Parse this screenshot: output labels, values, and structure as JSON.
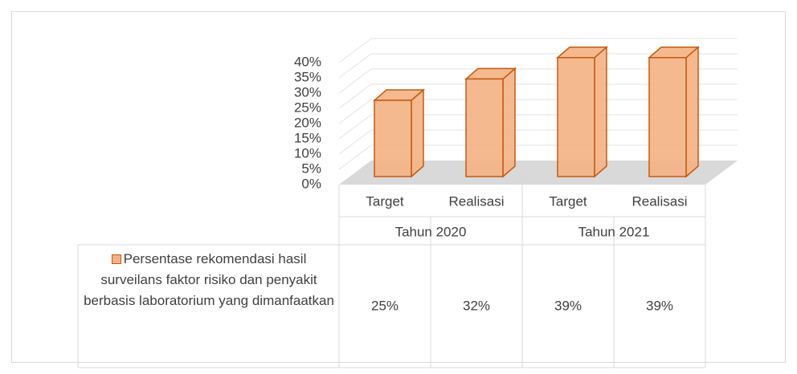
{
  "chart_data": {
    "type": "bar3d",
    "categories": [
      "Target",
      "Realisasi",
      "Target",
      "Realisasi"
    ],
    "groups": [
      "Tahun 2020",
      "Tahun 2021"
    ],
    "series": [
      {
        "name": "Persentase rekomendasi hasil surveilans faktor risiko dan penyakit berbasis laboratorium yang dimanfaatkan",
        "color": "#f4b183",
        "edge": "#c55a11",
        "values": [
          25,
          32,
          39,
          39
        ],
        "value_labels": [
          "25%",
          "32%",
          "39%",
          "39%"
        ]
      }
    ],
    "ylim": [
      0,
      40
    ],
    "yticks": [
      {
        "value": 0,
        "label": "0%"
      },
      {
        "value": 5,
        "label": "5%"
      },
      {
        "value": 10,
        "label": "10%"
      },
      {
        "value": 15,
        "label": "15%"
      },
      {
        "value": 20,
        "label": "20%"
      },
      {
        "value": 25,
        "label": "25%"
      },
      {
        "value": 30,
        "label": "30%"
      },
      {
        "value": 35,
        "label": "35%"
      },
      {
        "value": 40,
        "label": "40%"
      }
    ],
    "grid": true
  }
}
